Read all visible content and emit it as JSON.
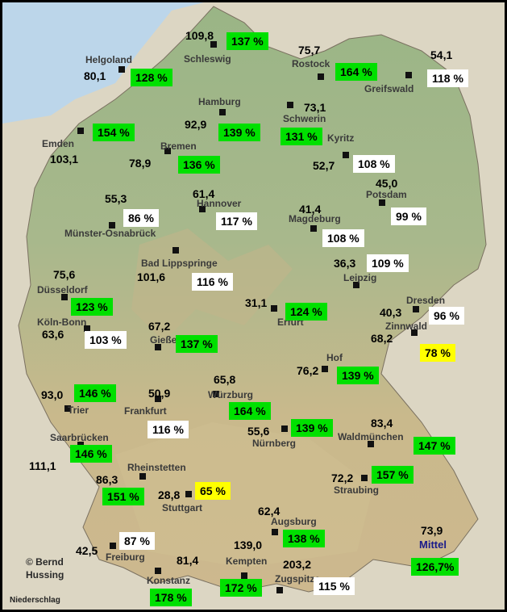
{
  "stations": [
    {
      "name": "Schleswig",
      "value": "109,8",
      "pct": "137 %",
      "cls": "green"
    },
    {
      "name": "Helgoland",
      "value": "80,1",
      "pct": "128 %",
      "cls": "green"
    },
    {
      "name": "Rostock",
      "value": "75,7",
      "pct": "164 %",
      "cls": "green"
    },
    {
      "name": "Greifswald",
      "value": "54,1",
      "pct": "118 %",
      "cls": "white"
    },
    {
      "name": "Emden",
      "value": "103,1",
      "pct": "154 %",
      "cls": "green"
    },
    {
      "name": "Hamburg",
      "value": "92,9",
      "pct": "139 %",
      "cls": "green"
    },
    {
      "name": "Schwerin",
      "value": "73,1",
      "pct": "131 %",
      "cls": "green"
    },
    {
      "name": "Bremen",
      "value": "78,9",
      "pct": "136 %",
      "cls": "green"
    },
    {
      "name": "Kyritz",
      "value": "52,7",
      "pct": "108 %",
      "cls": "white"
    },
    {
      "name": "Potsdam",
      "value": "45,0",
      "pct": "99 %",
      "cls": "white"
    },
    {
      "name": "Münster-Osnabrück",
      "value": "55,3",
      "pct": "86 %",
      "cls": "white"
    },
    {
      "name": "Hannover",
      "value": "61,4",
      "pct": "117 %",
      "cls": "white"
    },
    {
      "name": "Magdeburg",
      "value": "41,4",
      "pct": "108 %",
      "cls": "white"
    },
    {
      "name": "Bad Lippspringe",
      "value": "101,6",
      "pct": "116 %",
      "cls": "white"
    },
    {
      "name": "Leipzig",
      "value": "36,3",
      "pct": "109 %",
      "cls": "white"
    },
    {
      "name": "Düsseldorf",
      "value": "75,6",
      "pct": "123 %",
      "cls": "green"
    },
    {
      "name": "Erfurt",
      "value": "31,1",
      "pct": "124 %",
      "cls": "green"
    },
    {
      "name": "Dresden",
      "value": "40,3",
      "pct": "96 %",
      "cls": "white"
    },
    {
      "name": "Köln-Bonn",
      "value": "63,6",
      "pct": "103 %",
      "cls": "white"
    },
    {
      "name": "Gießen",
      "value": "67,2",
      "pct": "137 %",
      "cls": "green"
    },
    {
      "name": "Zinnwald",
      "value": "68,2",
      "pct": "78 %",
      "cls": "yellow"
    },
    {
      "name": "Hof",
      "value": "76,2",
      "pct": "139 %",
      "cls": "green"
    },
    {
      "name": "Trier",
      "value": "93,0",
      "pct": "146 %",
      "cls": "green"
    },
    {
      "name": "Frankfurt",
      "value": "50,9",
      "pct": "116 %",
      "cls": "white"
    },
    {
      "name": "Würzburg",
      "value": "65,8",
      "pct": "164 %",
      "cls": "green"
    },
    {
      "name": "Nürnberg",
      "value": "55,6",
      "pct": "139 %",
      "cls": "green"
    },
    {
      "name": "Waldmünchen",
      "value": "83,4",
      "pct": "147 %",
      "cls": "green"
    },
    {
      "name": "Saarbrücken",
      "value": "111,1",
      "pct": "146 %",
      "cls": "green"
    },
    {
      "name": "Rheinstetten",
      "value": "86,3",
      "pct": "151 %",
      "cls": "green"
    },
    {
      "name": "Stuttgart",
      "value": "28,8",
      "pct": "65 %",
      "cls": "yellow"
    },
    {
      "name": "Straubing",
      "value": "72,2",
      "pct": "157 %",
      "cls": "green"
    },
    {
      "name": "Augsburg",
      "value": "62,4",
      "pct": "138 %",
      "cls": "green"
    },
    {
      "name": "Freiburg",
      "value": "42,5",
      "pct": "87 %",
      "cls": "white"
    },
    {
      "name": "Konstanz",
      "value": "81,4",
      "pct": "178 %",
      "cls": "green"
    },
    {
      "name": "Kempten",
      "value": "139,0",
      "pct": "172 %",
      "cls": "green"
    },
    {
      "name": "Zugspitze",
      "value": "203,2",
      "pct": "115 %",
      "cls": "white"
    }
  ],
  "mittel": {
    "label": "Mittel",
    "value": "73,9",
    "pct": "126,7%"
  },
  "credit": [
    "© Bernd",
    "Hussing"
  ],
  "footer": "Niederschlag",
  "colors": {
    "green": "#00e000",
    "yellow": "#ffff00",
    "white": "#ffffff",
    "land": "#8fb07a",
    "sea": "#b8d4e8"
  }
}
